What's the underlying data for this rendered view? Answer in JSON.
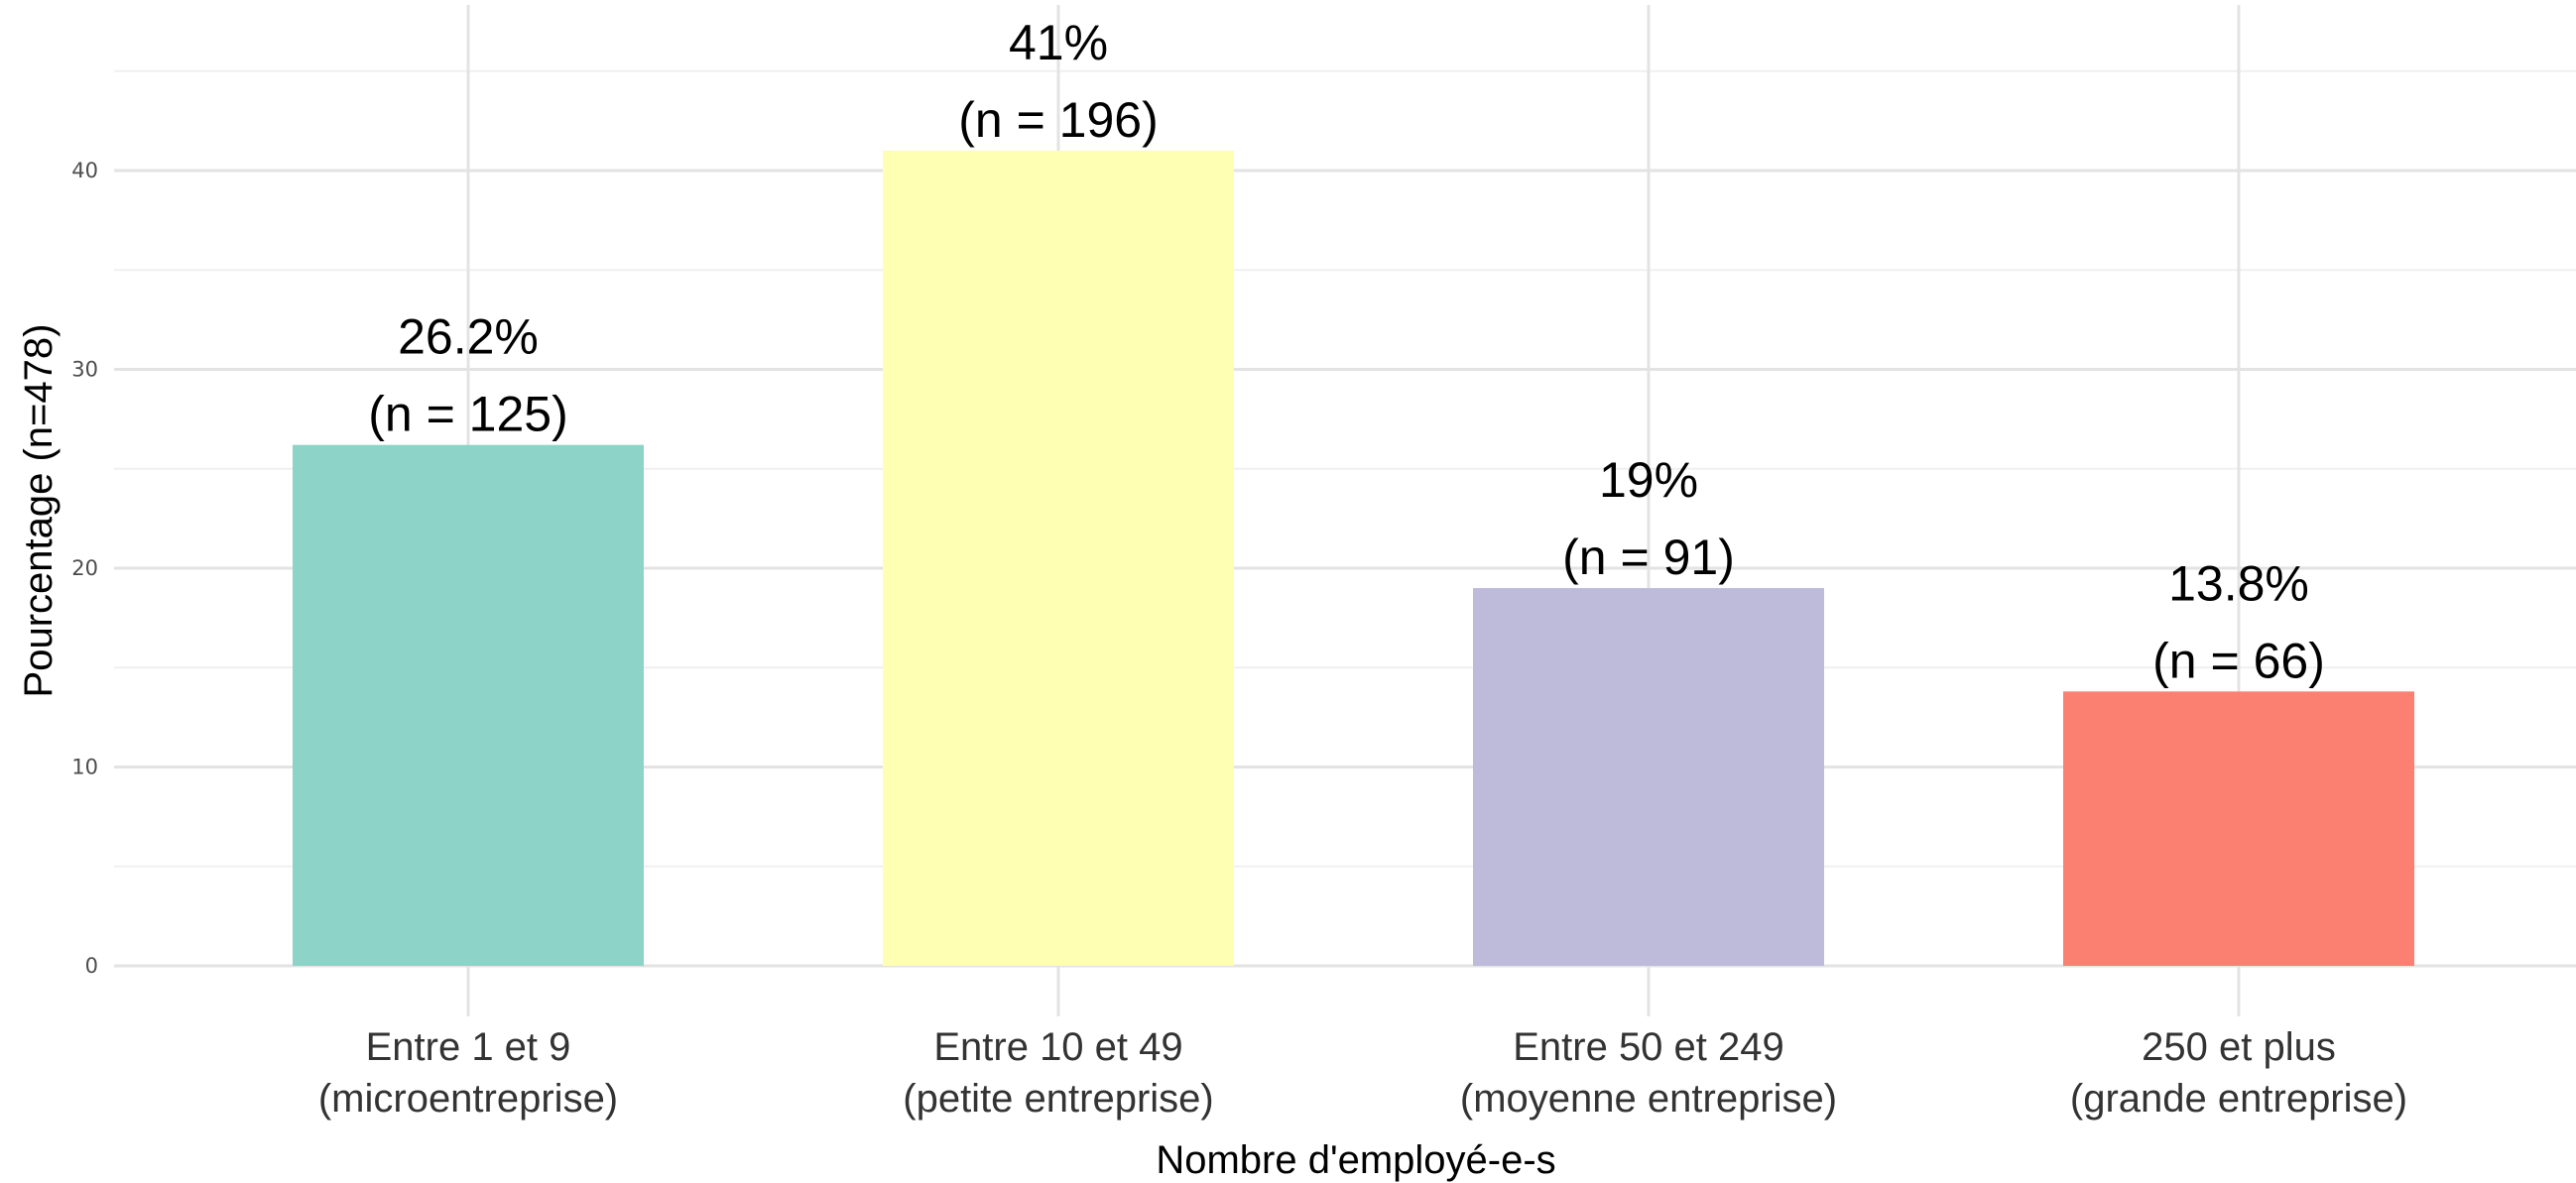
{
  "chart_data": {
    "type": "bar",
    "categories": [
      [
        "Entre 1 et 9",
        "(microentreprise)"
      ],
      [
        "Entre 10 et 49",
        "(petite entreprise)"
      ],
      [
        "Entre 50 et 249",
        "(moyenne entreprise)"
      ],
      [
        "250 et plus",
        "(grande entreprise)"
      ]
    ],
    "values": [
      26.2,
      41,
      19,
      13.8
    ],
    "counts": [
      125,
      196,
      91,
      66
    ],
    "data_labels": [
      [
        "26.2%",
        "(n = 125)"
      ],
      [
        "41%",
        "(n = 196)"
      ],
      [
        "19%",
        "(n = 91)"
      ],
      [
        "13.8%",
        "(n = 66)"
      ]
    ],
    "colors": [
      "#8dd3c7",
      "#ffffb3",
      "#bebada",
      "#fb8072"
    ],
    "xlabel": "Nombre d'employé-e-s",
    "ylabel": "Pourcentage (n=478)",
    "ylim": [
      0,
      45
    ],
    "yticks": [
      0,
      10,
      20,
      30,
      40
    ],
    "grid": true,
    "legend": "none"
  }
}
